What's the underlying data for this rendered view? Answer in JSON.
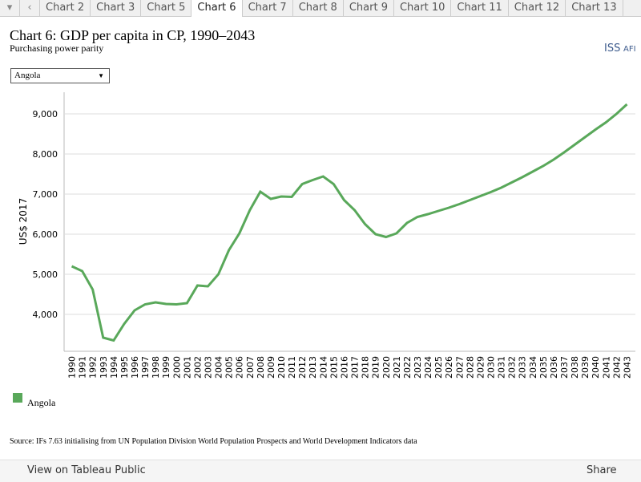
{
  "tabs": [
    "Chart 2",
    "Chart 3",
    "Chart 5",
    "Chart 6",
    "Chart 7",
    "Chart 8",
    "Chart 9",
    "Chart 10",
    "Chart 11",
    "Chart 12",
    "Chart 13"
  ],
  "active_tab": 3,
  "dropdown": "Angola",
  "logo": {
    "main": "ISS",
    "sub": "AFI"
  },
  "source": "Source: IFs 7.63 initialising from UN Population Division World Population Prospects and World Development Indicators data",
  "toolbar": {
    "view": "View on Tableau Public",
    "share": "Share"
  },
  "chart_data": {
    "type": "line",
    "title": "Chart 6: GDP per capita in CP, 1990–2043",
    "subtitle": "Purchasing power parity",
    "y_label": "US$ 2017",
    "categories": [
      "1990",
      "1991",
      "1992",
      "1993",
      "1994",
      "1995",
      "1996",
      "1997",
      "1998",
      "1999",
      "2000",
      "2001",
      "2002",
      "2003",
      "2004",
      "2005",
      "2006",
      "2007",
      "2008",
      "2009",
      "2010",
      "2011",
      "2012",
      "2013",
      "2014",
      "2015",
      "2016",
      "2017",
      "2018",
      "2019",
      "2020",
      "2021",
      "2022",
      "2023",
      "2024",
      "2025",
      "2026",
      "2027",
      "2028",
      "2029",
      "2030",
      "2031",
      "2032",
      "2033",
      "2034",
      "2035",
      "2036",
      "2037",
      "2038",
      "2039",
      "2040",
      "2041",
      "2042",
      "2043"
    ],
    "series": [
      {
        "name": "Angola",
        "color": "#59a85a",
        "values": [
          5200,
          5080,
          4620,
          3420,
          3350,
          3760,
          4100,
          4250,
          4300,
          4260,
          4250,
          4280,
          4720,
          4700,
          5000,
          5600,
          6020,
          6600,
          7060,
          6880,
          6940,
          6930,
          7250,
          7350,
          7440,
          7250,
          6850,
          6600,
          6250,
          6000,
          5930,
          6020,
          6280,
          6430,
          6500,
          6580,
          6660,
          6750,
          6850,
          6950,
          7050,
          7160,
          7290,
          7420,
          7560,
          7700,
          7860,
          8040,
          8230,
          8420,
          8610,
          8790,
          9000,
          9240
        ]
      }
    ],
    "ylim": [
      3080,
      9540
    ],
    "yticks": [
      {
        "value": 4000,
        "label": "4,000"
      },
      {
        "value": 5000,
        "label": "5,000"
      },
      {
        "value": 6000,
        "label": "6,000"
      },
      {
        "value": 7000,
        "label": "7,000"
      },
      {
        "value": 8000,
        "label": "8,000"
      },
      {
        "value": 9000,
        "label": "9,000"
      }
    ],
    "grid": true,
    "legend": "bottom-left"
  }
}
